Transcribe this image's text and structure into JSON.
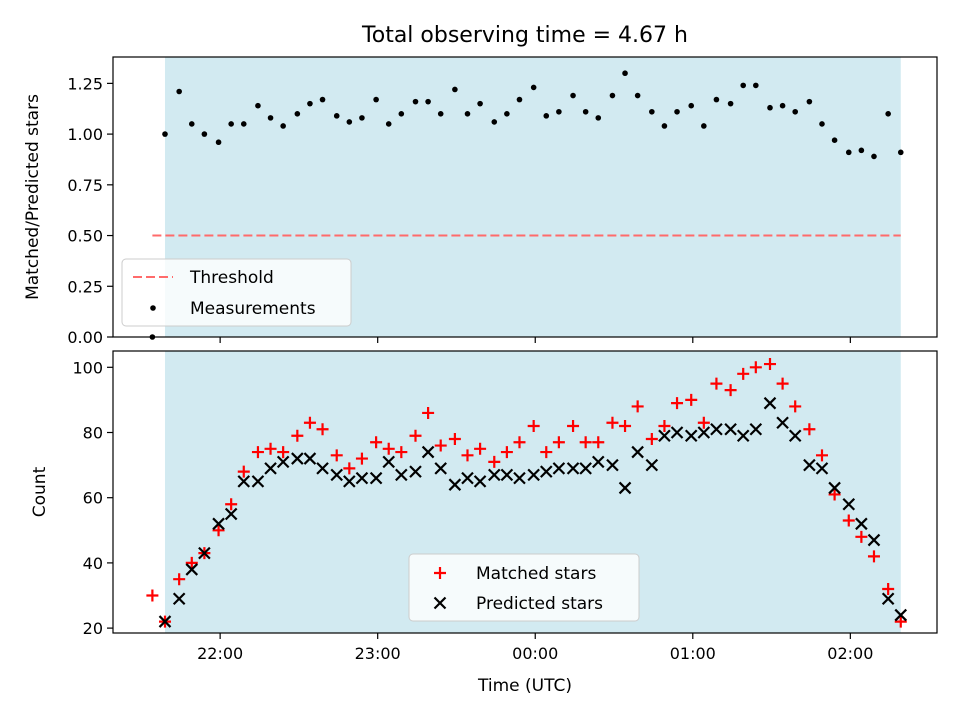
{
  "figure": {
    "title": "Total observing time = 4.67 h",
    "xlabel": "Time (UTC)",
    "x_ticks": [
      {
        "value": 22.0,
        "label": "22:00"
      },
      {
        "value": 23.0,
        "label": "23:00"
      },
      {
        "value": 24.0,
        "label": "00:00"
      },
      {
        "value": 25.0,
        "label": "01:00"
      },
      {
        "value": 26.0,
        "label": "02:00"
      }
    ],
    "xlim": [
      21.32,
      26.55
    ],
    "shaded_interval": [
      21.65,
      26.32
    ],
    "colors": {
      "shade": "#add8e6",
      "threshold": "#ff6b6b",
      "matched": "#ff0000",
      "predicted": "#000000",
      "measurements": "#000000"
    }
  },
  "chart_data": [
    {
      "type": "scatter",
      "ylabel": "Matched/Predicted stars",
      "ylim": [
        0,
        1.38
      ],
      "y_ticks": [
        0.0,
        0.25,
        0.5,
        0.75,
        1.0,
        1.25
      ],
      "y_tick_labels": [
        "0.00",
        "0.25",
        "0.50",
        "0.75",
        "1.00",
        "1.25"
      ],
      "legend": {
        "position": "lower-left",
        "entries": [
          "Threshold",
          "Measurements"
        ]
      },
      "threshold": {
        "name": "Threshold",
        "y": 0.5,
        "x_range": [
          21.57,
          26.32
        ]
      },
      "series": [
        {
          "name": "Measurements",
          "x": [
            21.57,
            21.65,
            21.74,
            21.82,
            21.9,
            21.99,
            22.07,
            22.15,
            22.24,
            22.32,
            22.4,
            22.49,
            22.57,
            22.65,
            22.74,
            22.82,
            22.9,
            22.99,
            23.07,
            23.15,
            23.24,
            23.32,
            23.4,
            23.49,
            23.57,
            23.65,
            23.74,
            23.82,
            23.9,
            23.99,
            24.07,
            24.15,
            24.24,
            24.32,
            24.4,
            24.49,
            24.57,
            24.65,
            24.74,
            24.82,
            24.9,
            24.99,
            25.07,
            25.15,
            25.24,
            25.32,
            25.4,
            25.49,
            25.57,
            25.65,
            25.74,
            25.82,
            25.9,
            25.99,
            26.07,
            26.15,
            26.24,
            26.32
          ],
          "y": [
            0.0,
            1.0,
            1.21,
            1.05,
            1.0,
            0.96,
            1.05,
            1.05,
            1.14,
            1.08,
            1.04,
            1.1,
            1.15,
            1.17,
            1.09,
            1.06,
            1.08,
            1.17,
            1.05,
            1.1,
            1.16,
            1.16,
            1.1,
            1.22,
            1.1,
            1.15,
            1.06,
            1.1,
            1.17,
            1.23,
            1.09,
            1.11,
            1.19,
            1.11,
            1.08,
            1.19,
            1.3,
            1.19,
            1.11,
            1.04,
            1.11,
            1.14,
            1.04,
            1.17,
            1.15,
            1.24,
            1.24,
            1.13,
            1.14,
            1.11,
            1.16,
            1.05,
            0.97,
            0.91,
            0.92,
            0.89,
            1.1,
            0.91
          ]
        }
      ]
    },
    {
      "type": "scatter",
      "ylabel": "Count",
      "ylim": [
        18.5,
        105
      ],
      "y_ticks": [
        20,
        40,
        60,
        80,
        100
      ],
      "y_tick_labels": [
        "20",
        "40",
        "60",
        "80",
        "100"
      ],
      "legend": {
        "position": "lower-center",
        "entries": [
          "Matched stars",
          "Predicted stars"
        ]
      },
      "series": [
        {
          "name": "Matched stars",
          "x": [
            21.57,
            21.65,
            21.74,
            21.82,
            21.9,
            21.99,
            22.07,
            22.15,
            22.24,
            22.32,
            22.4,
            22.49,
            22.57,
            22.65,
            22.74,
            22.82,
            22.9,
            22.99,
            23.07,
            23.15,
            23.24,
            23.32,
            23.4,
            23.49,
            23.57,
            23.65,
            23.74,
            23.82,
            23.9,
            23.99,
            24.07,
            24.15,
            24.24,
            24.32,
            24.4,
            24.49,
            24.57,
            24.65,
            24.74,
            24.82,
            24.9,
            24.99,
            25.07,
            25.15,
            25.24,
            25.32,
            25.4,
            25.49,
            25.57,
            25.65,
            25.74,
            25.82,
            25.9,
            25.99,
            26.07,
            26.15,
            26.24,
            26.32
          ],
          "y": [
            30,
            22,
            35,
            40,
            43,
            50,
            58,
            68,
            74,
            75,
            74,
            79,
            83,
            81,
            73,
            69,
            72,
            77,
            75,
            74,
            79,
            86,
            76,
            78,
            73,
            75,
            71,
            74,
            77,
            82,
            74,
            77,
            82,
            77,
            77,
            83,
            82,
            88,
            78,
            82,
            89,
            90,
            83,
            95,
            93,
            98,
            100,
            101,
            95,
            88,
            81,
            73,
            61,
            53,
            48,
            42,
            32,
            22
          ]
        },
        {
          "name": "Predicted stars",
          "x": [
            21.65,
            21.74,
            21.82,
            21.9,
            21.99,
            22.07,
            22.15,
            22.24,
            22.32,
            22.4,
            22.49,
            22.57,
            22.65,
            22.74,
            22.82,
            22.9,
            22.99,
            23.07,
            23.15,
            23.24,
            23.32,
            23.4,
            23.49,
            23.57,
            23.65,
            23.74,
            23.82,
            23.9,
            23.99,
            24.07,
            24.15,
            24.24,
            24.32,
            24.4,
            24.49,
            24.57,
            24.65,
            24.74,
            24.82,
            24.9,
            24.99,
            25.07,
            25.15,
            25.24,
            25.32,
            25.4,
            25.49,
            25.57,
            25.65,
            25.74,
            25.82,
            25.9,
            25.99,
            26.07,
            26.15,
            26.24,
            26.32
          ],
          "y": [
            22,
            29,
            38,
            43,
            52,
            55,
            65,
            65,
            69,
            71,
            72,
            72,
            69,
            67,
            65,
            66,
            66,
            71,
            67,
            68,
            74,
            69,
            64,
            66,
            65,
            67,
            67,
            66,
            67,
            68,
            69,
            69,
            69,
            71,
            70,
            63,
            74,
            70,
            79,
            80,
            79,
            80,
            81,
            81,
            79,
            81,
            89,
            83,
            79,
            70,
            69,
            63,
            58,
            52,
            47,
            29,
            24
          ]
        }
      ]
    }
  ]
}
